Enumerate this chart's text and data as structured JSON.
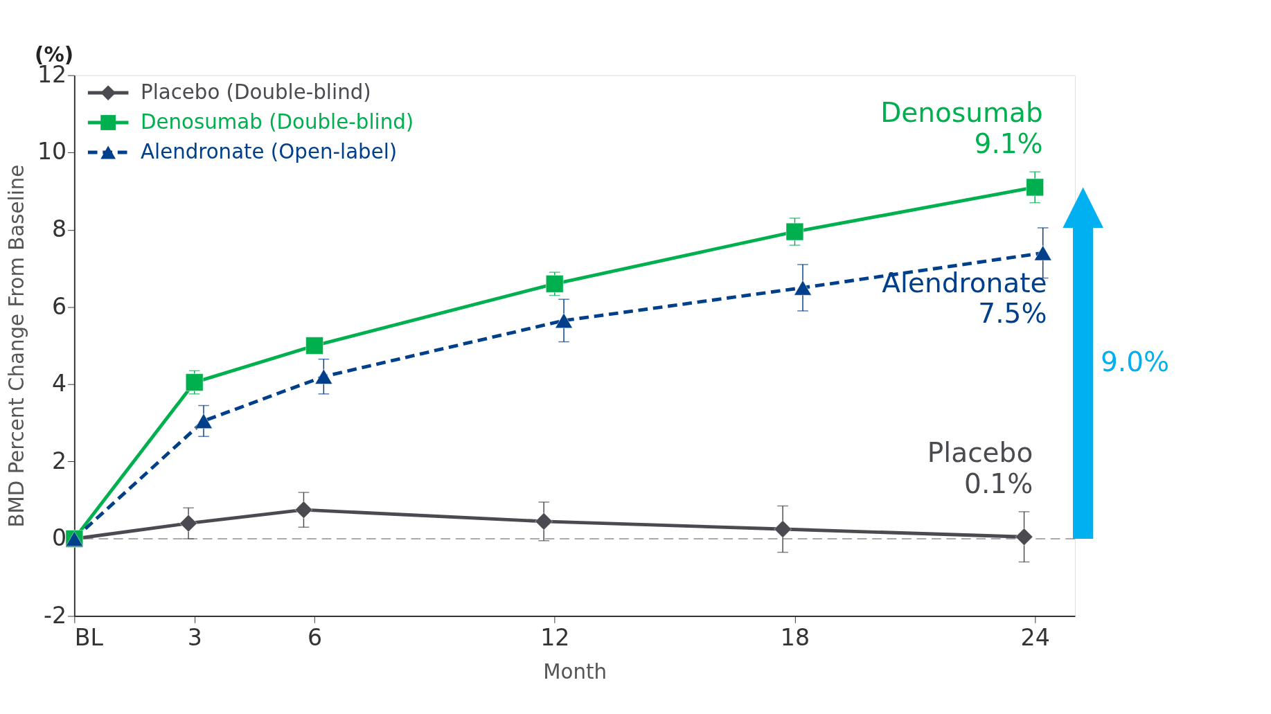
{
  "chart_data": {
    "type": "line",
    "xlabel": "Month",
    "ylabel": "BMD Percent Change From Baseline",
    "xlim": [
      0,
      25
    ],
    "ylim": [
      -2,
      12
    ],
    "xticks": [
      {
        "value": 0,
        "label": "BL"
      },
      3,
      6,
      12,
      18,
      24
    ],
    "yticks": [
      -2,
      0,
      2,
      4,
      6,
      8,
      10,
      12
    ],
    "grid": false,
    "legend": "top left",
    "series": [
      {
        "name": "Placebo (Double-blind)",
        "color": "#4a4a50",
        "marker": "diamond",
        "line_style": "solid",
        "x": [
          0,
          2.85,
          5.73,
          11.73,
          17.7,
          23.73
        ],
        "values": [
          0,
          0.4,
          0.75,
          0.45,
          0.25,
          0.05
        ],
        "errors": [
          null,
          0.4,
          0.45,
          0.5,
          0.6,
          0.65
        ]
      },
      {
        "name": "Denosumab (Double-blind)",
        "color": "#00b04f",
        "marker": "square",
        "line_style": "solid",
        "x": [
          0,
          3,
          6,
          12,
          18,
          24
        ],
        "values": [
          0,
          4.05,
          5.0,
          6.6,
          7.95,
          9.1
        ],
        "errors": [
          null,
          0.3,
          0.2,
          0.3,
          0.35,
          0.4
        ]
      },
      {
        "name": "Alendronate (Open-label)",
        "color": "#003f8a",
        "marker": "triangle",
        "line_style": "dashed",
        "x": [
          0,
          3.23,
          6.23,
          12.23,
          18.2,
          24.2
        ],
        "values": [
          0,
          3.05,
          4.2,
          5.65,
          6.5,
          7.4
        ],
        "errors": [
          null,
          0.4,
          0.45,
          0.55,
          0.6,
          0.65
        ]
      }
    ],
    "ref_lines": [
      {
        "axis": "y",
        "value": 0,
        "color": "#aaaaaa",
        "line_style": "dashed"
      }
    ],
    "annotations": [
      "Placebo\n0.1%",
      "Denosumab\n9.1%",
      "Alendronate\n7.5%",
      "9.0%",
      "(%)"
    ]
  }
}
